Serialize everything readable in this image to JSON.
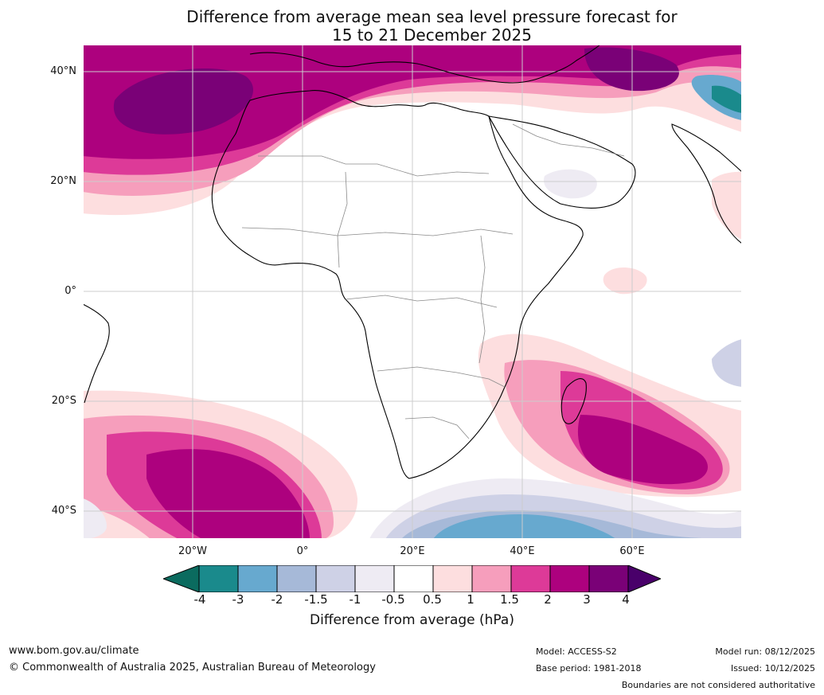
{
  "header": {
    "title_line1": "Difference from average mean sea level pressure forecast for",
    "title_line2": "15 to 21 December 2025"
  },
  "map": {
    "latitude_labels": [
      "40°N",
      "20°N",
      "0°",
      "20°S",
      "40°S"
    ],
    "longitude_labels": [
      "20°W",
      "0°",
      "20°E",
      "40°E",
      "60°E"
    ]
  },
  "legend": {
    "title": "Difference from average (hPa)",
    "ticks": [
      "-4",
      "-3",
      "-2",
      "-1.5",
      "-1",
      "-0.5",
      "0.5",
      "1",
      "1.5",
      "2",
      "3",
      "4"
    ],
    "colors": [
      "#0b6b5f",
      "#1a8a8c",
      "#67a9cf",
      "#a6b9d8",
      "#ced1e6",
      "#eeebf3",
      "#ffffff",
      "#fddedf",
      "#f69ebc",
      "#dd3a98",
      "#ad017e",
      "#7a0177",
      "#49006a"
    ]
  },
  "footer": {
    "website": "www.bom.gov.au/climate",
    "copyright": "© Commonwealth of Australia 2025, Australian Bureau of Meteorology",
    "model": "Model: ACCESS-S2",
    "base_period": "Base period: 1981-2018",
    "model_run": "Model run: 08/12/2025",
    "issued": "Issued: 10/12/2025",
    "disclaimer": "Boundaries are not considered authoritative"
  }
}
